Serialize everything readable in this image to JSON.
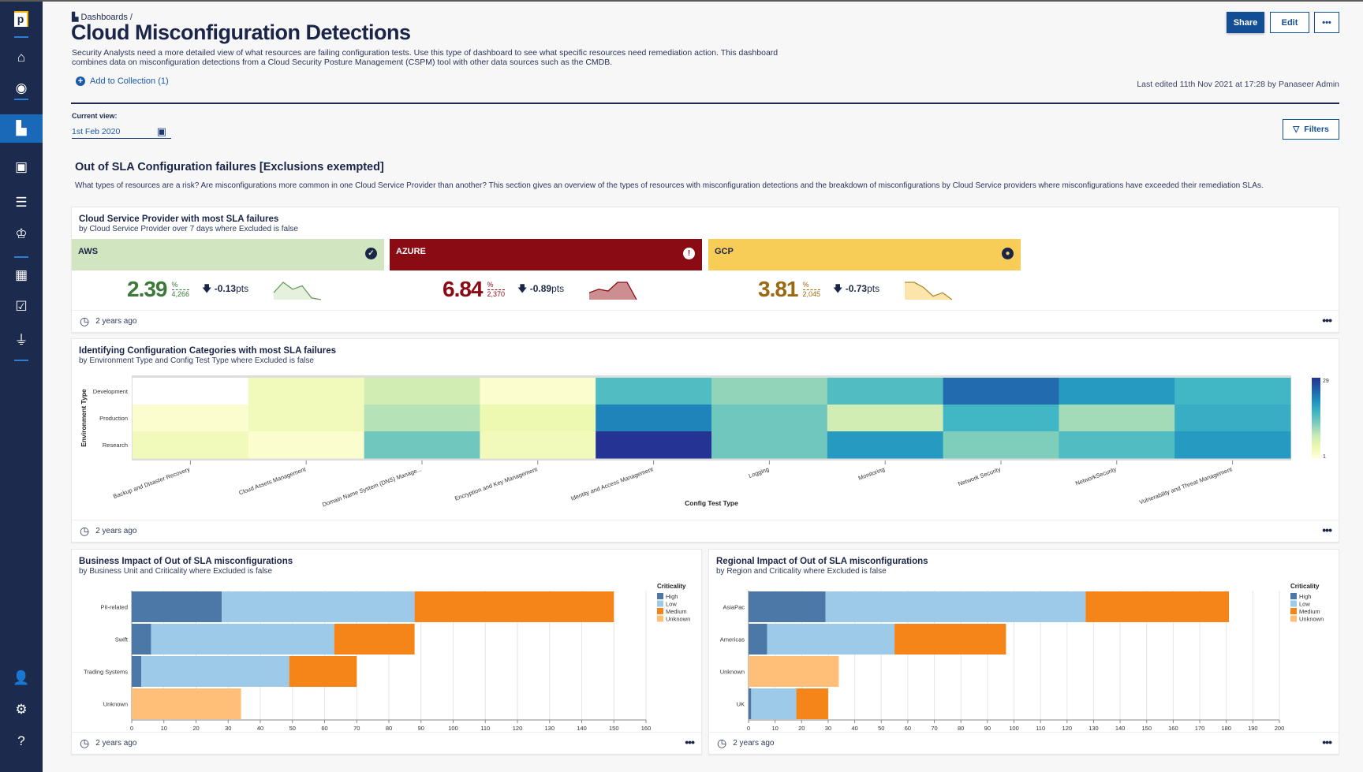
{
  "sidebar": {
    "logo": "p",
    "items": [
      {
        "icon": "home-icon",
        "glyph": "⌂"
      },
      {
        "icon": "eye-icon",
        "glyph": "◉"
      },
      {
        "icon": "dashboards-icon",
        "glyph": "▙",
        "active": true
      },
      {
        "icon": "labs-icon",
        "glyph": "▣"
      },
      {
        "icon": "database-icon",
        "glyph": "☰"
      },
      {
        "icon": "trophy-icon",
        "glyph": "♔"
      },
      {
        "icon": "calculator-icon",
        "glyph": "▦"
      },
      {
        "icon": "checklist-icon",
        "glyph": "☑"
      },
      {
        "icon": "plug-icon",
        "glyph": "⏚"
      },
      {
        "icon": "user-icon",
        "glyph": "👤"
      },
      {
        "icon": "settings-icon",
        "glyph": "⚙"
      },
      {
        "icon": "help-icon",
        "glyph": "?"
      }
    ]
  },
  "header": {
    "breadcrumb": "Dashboards /",
    "title": "Cloud Misconfiguration Detections",
    "description": "Security Analysts need a more detailed view of what resources are failing configuration tests. Use this type of dashboard to see what specific resources need remediation action. This dashboard combines data on misconfiguration detections from a Cloud Security Posture Management (CSPM) tool with other data sources such as the CMDB.",
    "add_collection": "Add to Collection (1)",
    "share": "Share",
    "edit": "Edit",
    "more": "•••",
    "last_edited": "Last edited 11th Nov 2021 at 17:28 by Panaseer Admin"
  },
  "view": {
    "label": "Current view:",
    "date": "1st Feb 2020",
    "filters": "Filters"
  },
  "section": {
    "title": "Out of SLA Configuration failures [Exclusions exempted]",
    "description": "What types of resources are a risk? Are misconfigurations more common in one Cloud Service Provider than another? This section gives an overview of the types of resources with misconfiguration detections and the breakdown of misconfigurations by Cloud Service providers where misconfigurations have exceeded their remediation SLAs."
  },
  "csp_card": {
    "title": "Cloud Service Provider with most SLA failures",
    "subtitle": "by Cloud Service Provider over 7 days where Excluded is false",
    "footer": "2 years ago",
    "more": "•••",
    "tiles": [
      {
        "name": "AWS",
        "value": "2.39",
        "unit": "%",
        "count": "4,266",
        "delta": "-0.13",
        "delta_unit": "pts",
        "status": "check",
        "bg": "#d1e5c1",
        "fg": "#1b2548",
        "val_color": "#3d7a3a",
        "spark_fill": "#e6f1dd",
        "spark_line": "#6a9a5f",
        "trend": [
          2,
          5,
          3,
          4,
          0.5,
          0
        ]
      },
      {
        "name": "AZURE",
        "value": "6.84",
        "unit": "%",
        "count": "2,370",
        "delta": "-0.89",
        "delta_unit": "pts",
        "status": "alert",
        "bg": "#8a0b13",
        "fg": "#ffffff",
        "val_color": "#8a0b13",
        "spark_fill": "#cc8e91",
        "spark_line": "#8a0b13",
        "trend": [
          2,
          3,
          2.5,
          5,
          5,
          0
        ]
      },
      {
        "name": "GCP",
        "value": "3.81",
        "unit": "%",
        "count": "2,045",
        "delta": "-0.73",
        "delta_unit": "pts",
        "status": "dot",
        "bg": "#f8cd57",
        "fg": "#1b2548",
        "val_color": "#9a6a10",
        "spark_fill": "#fbe5ab",
        "spark_line": "#b08a2a",
        "trend": [
          5,
          5,
          3.5,
          1,
          2,
          0
        ]
      }
    ]
  },
  "heatmap_card": {
    "title": "Identifying Configuration Categories with most SLA failures",
    "subtitle": "by Environment Type and Config Test Type where Excluded is false",
    "footer": "2 years ago",
    "more": "•••"
  },
  "business_card": {
    "title": "Business Impact of Out of SLA misconfigurations",
    "subtitle": "by Business Unit and Criticality where Excluded is false",
    "footer": "2 years ago",
    "more": "•••"
  },
  "regional_card": {
    "title": "Regional Impact of Out of SLA misconfigurations",
    "subtitle": "by Region and Criticality where Excluded is false",
    "footer": "2 years ago",
    "more": "•••"
  },
  "chart_data": [
    {
      "type": "heatmap",
      "xlabel": "Config Test Type",
      "ylabel": "Environment Type",
      "x": [
        "Backup and Disaster Recovery",
        "Cloud Assets Management",
        "Domain Name System (DNS) Manage...",
        "Encryption and Key Management",
        "Identity and Access Management",
        "Logging",
        "Monitoring",
        "Network Security",
        "NetworkSecurity",
        "Vulnerability and Threat Management"
      ],
      "y": [
        "Development",
        "Production",
        "Research"
      ],
      "values": [
        [
          null,
          4,
          8,
          2,
          16,
          12,
          16,
          24,
          20,
          17
        ],
        [
          2,
          4,
          10,
          5,
          22,
          14,
          8,
          17,
          11,
          18
        ],
        [
          4,
          2,
          14,
          4,
          29,
          14,
          20,
          13,
          16,
          20
        ]
      ],
      "color_range": [
        1,
        29
      ],
      "colors": [
        "#ffffd9",
        "#edf8b1",
        "#c7e9b4",
        "#7fcdbb",
        "#41b6c4",
        "#1d91c0",
        "#225ea8",
        "#253494"
      ]
    },
    {
      "type": "bar",
      "stacked": true,
      "orientation": "horizontal",
      "legend_title": "Criticality",
      "legend": "right",
      "categories": [
        "PII-related",
        "Swift",
        "Trading Systems",
        "Unknown"
      ],
      "xlim": [
        0,
        160
      ],
      "xticks": [
        0,
        10,
        20,
        30,
        40,
        50,
        60,
        70,
        80,
        90,
        100,
        110,
        120,
        130,
        140,
        150,
        160
      ],
      "series": [
        {
          "name": "High",
          "color": "#4c78a8",
          "values": [
            28,
            6,
            3,
            0
          ]
        },
        {
          "name": "Low",
          "color": "#9ecae9",
          "values": [
            60,
            57,
            46,
            0
          ]
        },
        {
          "name": "Medium",
          "color": "#f58518",
          "values": [
            62,
            25,
            21,
            0
          ]
        },
        {
          "name": "Unknown",
          "color": "#ffbf79",
          "values": [
            0,
            0,
            0,
            34
          ]
        }
      ]
    },
    {
      "type": "bar",
      "stacked": true,
      "orientation": "horizontal",
      "legend_title": "Criticality",
      "legend": "right",
      "categories": [
        "AsiaPac",
        "Americas",
        "Unknown",
        "UK"
      ],
      "xlim": [
        0,
        200
      ],
      "xticks": [
        0,
        10,
        20,
        30,
        40,
        50,
        60,
        70,
        80,
        90,
        100,
        110,
        120,
        130,
        140,
        150,
        160,
        170,
        180,
        190,
        200
      ],
      "series": [
        {
          "name": "High",
          "color": "#4c78a8",
          "values": [
            29,
            7,
            0,
            1
          ]
        },
        {
          "name": "Low",
          "color": "#9ecae9",
          "values": [
            98,
            48,
            0,
            17
          ]
        },
        {
          "name": "Medium",
          "color": "#f58518",
          "values": [
            54,
            42,
            0,
            12
          ]
        },
        {
          "name": "Unknown",
          "color": "#ffbf79",
          "values": [
            0,
            0,
            34,
            0
          ]
        }
      ]
    }
  ]
}
